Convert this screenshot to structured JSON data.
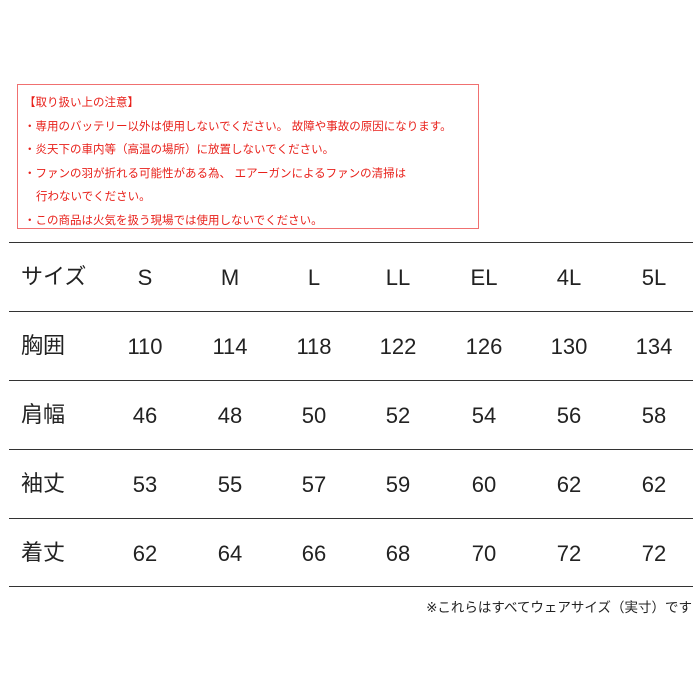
{
  "notice": {
    "title": "【取り扱い上の注意】",
    "lines": [
      "・専用のバッテリー以外は使用しないでください。 故障や事故の原因になります。",
      "・炎天下の車内等（高温の場所）に放置しないでください。",
      "・ファンの羽が折れる可能性がある為、 エアーガンによるファンの清掃は",
      "行わないでください。",
      "・この商品は火気を扱う現場では使用しないでください。"
    ],
    "color": "#e8201a"
  },
  "size_table": {
    "header": {
      "label": "サイズ",
      "sizes": [
        "S",
        "M",
        "L",
        "LL",
        "EL",
        "4L",
        "5L"
      ]
    },
    "rows": [
      {
        "label": "胸囲",
        "values": [
          "110",
          "114",
          "118",
          "122",
          "126",
          "130",
          "134"
        ]
      },
      {
        "label": "肩幅",
        "values": [
          "46",
          "48",
          "50",
          "52",
          "54",
          "56",
          "58"
        ]
      },
      {
        "label": "袖丈",
        "values": [
          "53",
          "55",
          "57",
          "59",
          "60",
          "62",
          "62"
        ]
      },
      {
        "label": "着丈",
        "values": [
          "62",
          "64",
          "66",
          "68",
          "70",
          "72",
          "72"
        ]
      }
    ]
  },
  "footnote": "※これらはすべてウェアサイズ（実寸）です"
}
